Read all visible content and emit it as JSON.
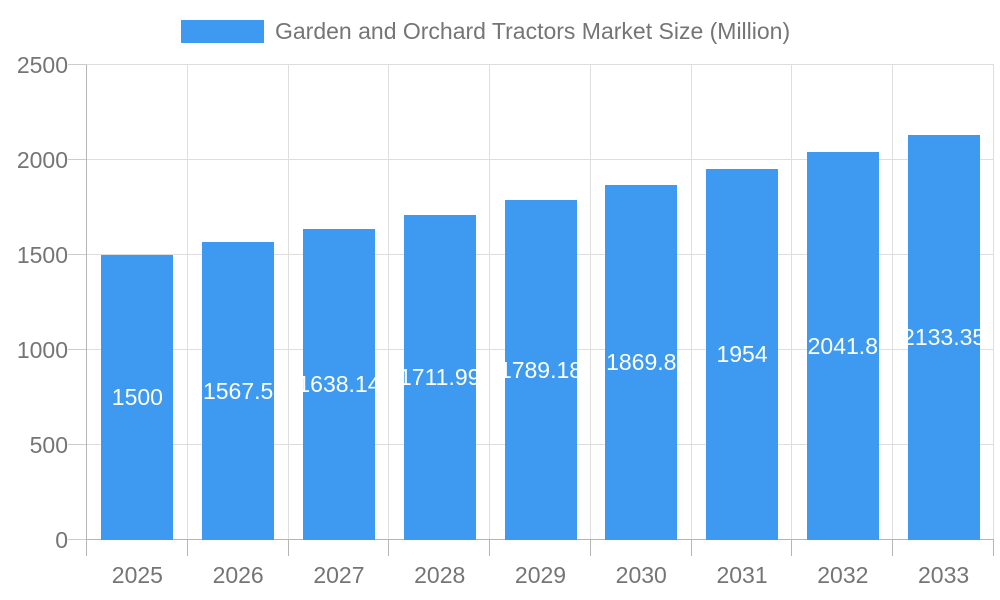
{
  "legend": {
    "label": "Garden and Orchard Tractors Market Size (Million)"
  },
  "chart_data": {
    "type": "bar",
    "title": "Garden and Orchard Tractors Market Size (Million)",
    "categories": [
      "2025",
      "2026",
      "2027",
      "2028",
      "2029",
      "2030",
      "2031",
      "2032",
      "2033"
    ],
    "values": [
      1500,
      1567.5,
      1638.14,
      1711.99,
      1789.18,
      1869.8,
      1954,
      2041.8,
      2133.35
    ],
    "value_labels": [
      "1500",
      "1567.5",
      "1638.14",
      "1711.99",
      "1789.18",
      "1869.8",
      "1954",
      "2041.8",
      "2133.35"
    ],
    "xlabel": "",
    "ylabel": "",
    "ylim": [
      0,
      2500
    ],
    "yticks": [
      0,
      500,
      1000,
      1500,
      2000,
      2500
    ],
    "grid": true,
    "legend_position": "top",
    "colors": {
      "bar": "#3d9af0",
      "axis": "#b5b5b5",
      "grid": "#dedede",
      "tick": "#cccccc",
      "label_text": "#757575",
      "value_text": "#ffffff",
      "background": "#ffffff"
    }
  }
}
